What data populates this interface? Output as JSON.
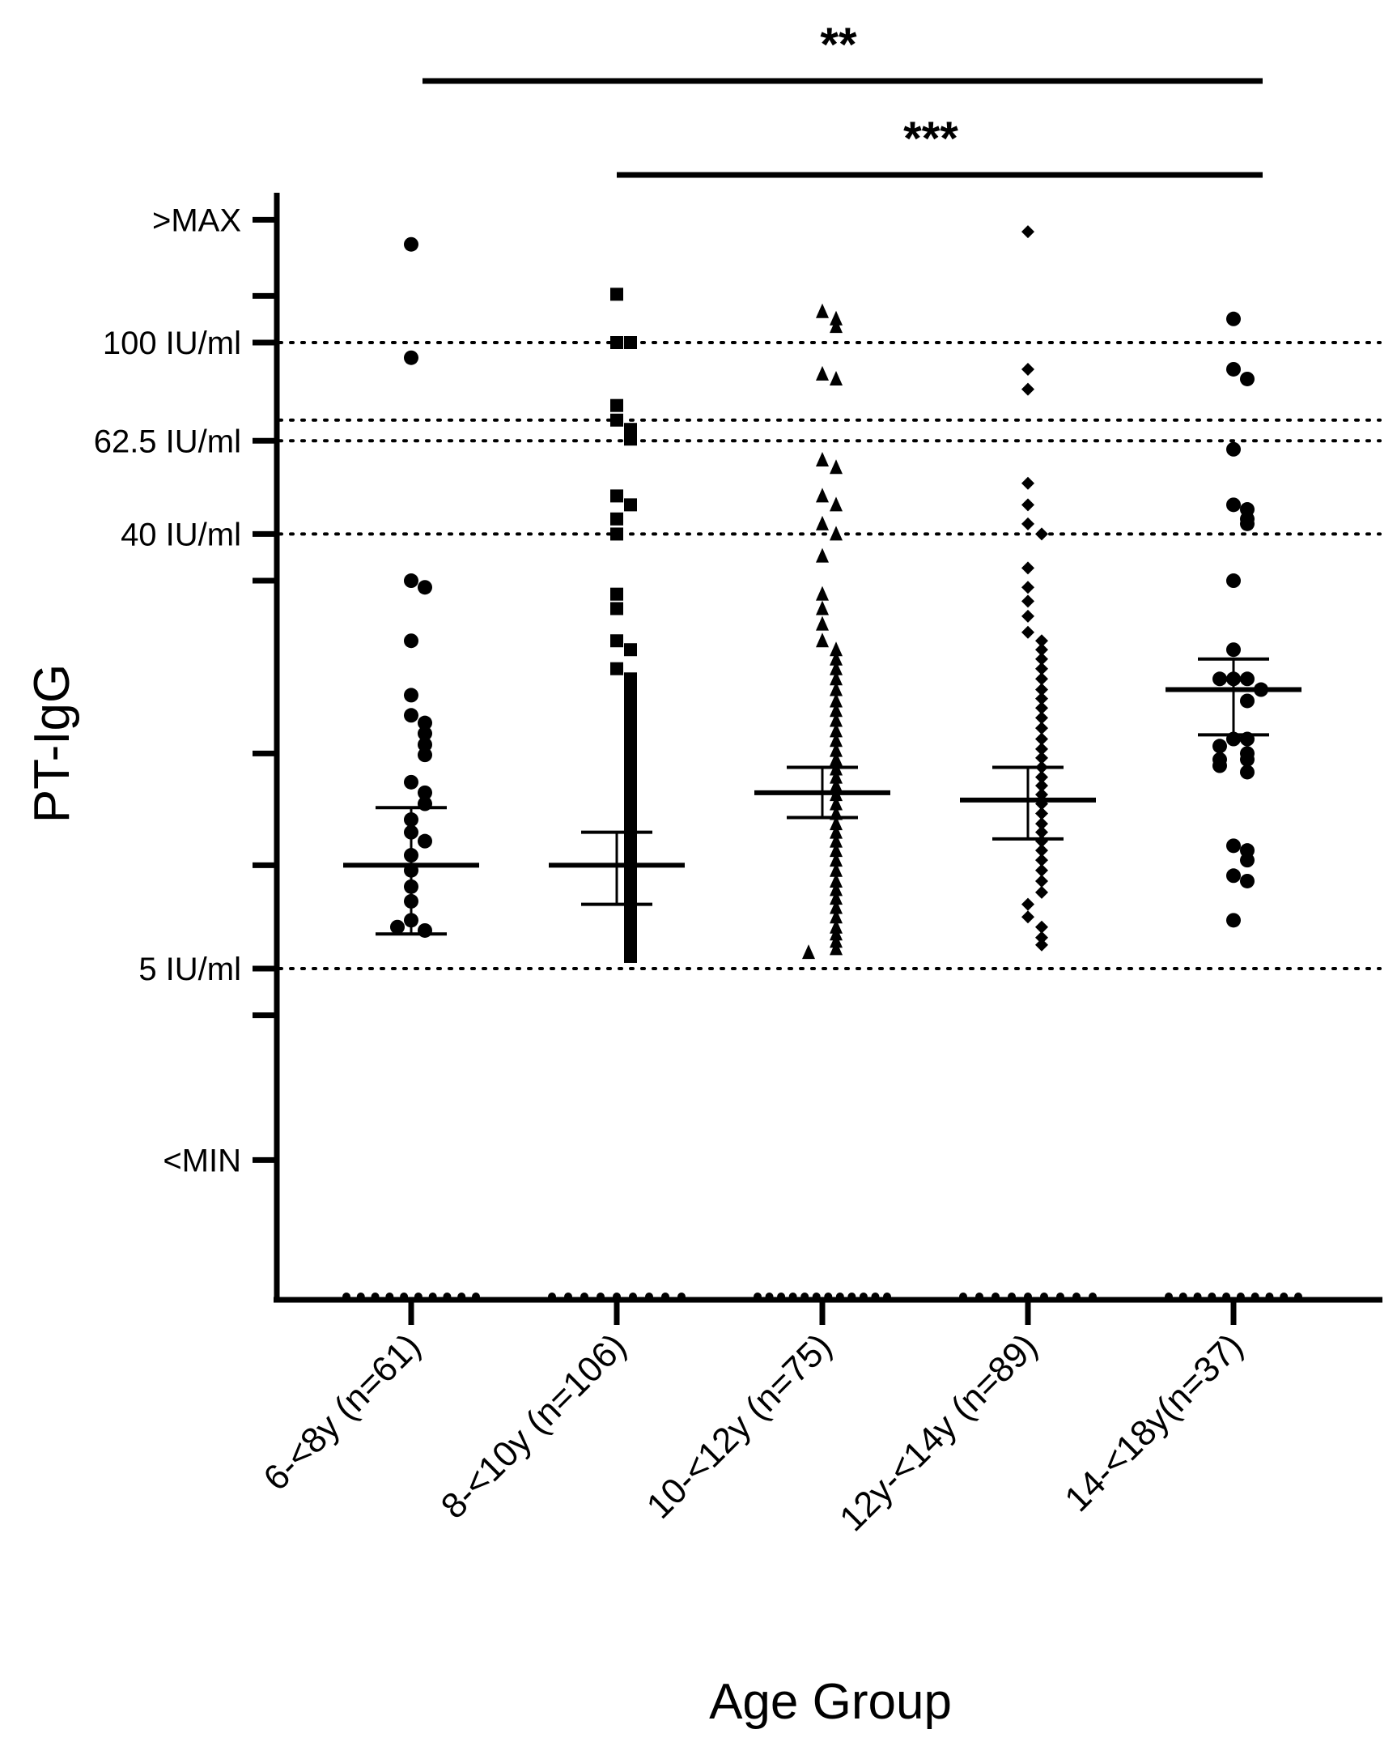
{
  "chart_data": {
    "type": "scatter",
    "xlabel": "Age Group",
    "ylabel": "PT-IgG",
    "y_scale": "log",
    "y_unit": "IU/ml",
    "categories": [
      "6-<8y (n=61)",
      "8-<10y (n=106)",
      "10-<12y (n=75)",
      "12y-<14y (n=89)",
      "14-<18y(n=37)"
    ],
    "markers": [
      "circle",
      "square",
      "triangle",
      "diamond",
      "circle"
    ],
    "y_tick_labels": [
      {
        "label": ">MAX",
        "value": 180
      },
      {
        "label": "100 IU/ml",
        "value": 100
      },
      {
        "label": "62.5 IU/ml",
        "value": 62.5
      },
      {
        "label": "40 IU/ml",
        "value": 40
      },
      {
        "label": "5 IU/ml",
        "value": 5
      },
      {
        "label": "<MIN",
        "value": 2
      }
    ],
    "unlabeled_ticks": [
      125,
      32,
      14,
      8.2,
      4
    ],
    "reference_lines": [
      100,
      69,
      62.5,
      40,
      5
    ],
    "series": [
      {
        "category": "6-<8y (n=61)",
        "mean": 8.2,
        "ci_low": 5.9,
        "ci_high": 10.8,
        "below_min_count": 10,
        "values": [
          160,
          93,
          32,
          31,
          24,
          18.5,
          16.8,
          16.2,
          15.4,
          14.6,
          13.9,
          12.2,
          11.6,
          11.0,
          10.2,
          9.6,
          9.2,
          8.6,
          8.0,
          7.4,
          6.9,
          6.3,
          6.0,
          6.1
        ]
      },
      {
        "category": "8-<10y (n=106)",
        "mean": 8.2,
        "ci_low": 6.8,
        "ci_high": 9.6,
        "below_min_count": 9,
        "values": [
          126,
          100,
          100,
          74,
          69,
          66,
          63,
          48,
          46,
          43,
          40,
          30,
          28,
          24,
          23,
          21,
          20,
          19.5,
          18.8,
          18.0,
          17.2,
          16.6,
          15.8,
          15.2,
          14.6,
          14.0,
          13.4,
          12.8,
          12.3,
          11.8,
          11.3,
          10.9,
          10.5,
          10.1,
          9.7,
          9.3,
          9.0,
          8.7,
          8.3,
          8.0,
          7.6,
          7.2,
          6.9,
          6.6,
          6.3,
          6.0,
          5.8,
          5.6,
          5.4,
          5.3
        ]
      },
      {
        "category": "10-<12y (n=75)",
        "mean": 11.6,
        "ci_low": 10.3,
        "ci_high": 13.1,
        "below_min_count": 12,
        "values": [
          116,
          112,
          108,
          86,
          84,
          57,
          55,
          48,
          46,
          42,
          40,
          36,
          30,
          28,
          26,
          24,
          23,
          22,
          21,
          20,
          19,
          18,
          17.2,
          16.4,
          15.6,
          14.9,
          14.2,
          13.6,
          13.0,
          12.5,
          12.0,
          11.5,
          11.0,
          10.5,
          10.0,
          9.6,
          9.2,
          8.8,
          8.4,
          8.0,
          7.6,
          7.3,
          7.0,
          6.7,
          6.4,
          6.1,
          5.9,
          5.7,
          5.5,
          5.4
        ]
      },
      {
        "category": "12y-<14y (n=89)",
        "mean": 11.2,
        "ci_low": 9.3,
        "ci_high": 13.1,
        "below_min_count": 9,
        "values": [
          170,
          88,
          80,
          51,
          46,
          42,
          40,
          34,
          31,
          29,
          27,
          25,
          24,
          23,
          22,
          21,
          20,
          19,
          18.2,
          17.4,
          16.6,
          15.8,
          15.0,
          14.3,
          13.7,
          13.1,
          12.5,
          12.0,
          11.5,
          11.0,
          10.5,
          10.0,
          9.6,
          9.2,
          8.8,
          8.4,
          8.0,
          7.6,
          7.2,
          6.8,
          6.4,
          6.1,
          5.8,
          5.6
        ]
      },
      {
        "category": "14-<18y(n=37)",
        "mean": 19.0,
        "ci_low": 15.3,
        "ci_high": 22.0,
        "below_min_count": 10,
        "values": [
          112,
          88,
          84,
          60,
          46,
          45,
          43,
          42,
          32,
          23,
          20,
          20,
          20,
          19,
          18,
          15,
          15,
          14.5,
          14.0,
          13.6,
          13.6,
          13.2,
          12.8,
          9.0,
          8.8,
          8.4,
          7.8,
          7.6,
          6.3
        ]
      }
    ],
    "significance": [
      {
        "label": "**",
        "from": "6-<8y (n=61)",
        "to": "14-<18y(n=37)"
      },
      {
        "label": "***",
        "from": "8-<10y (n=106)",
        "to": "14-<18y(n=37)"
      }
    ]
  }
}
